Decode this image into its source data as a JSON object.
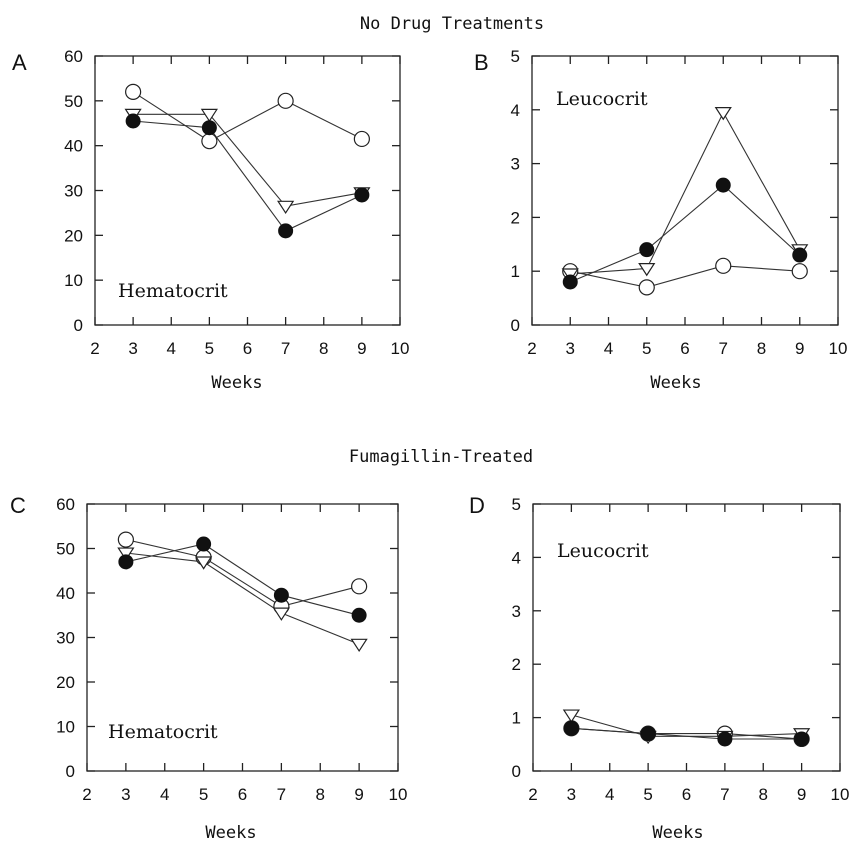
{
  "sections": [
    {
      "title": "No Drug Treatments"
    },
    {
      "title": "Fumagillin-Treated"
    }
  ],
  "chart_data": [
    {
      "panel": "A",
      "type": "line",
      "label": "Hematocrit",
      "xlabel": "Weeks",
      "ylabel": "",
      "xlim": [
        2,
        10
      ],
      "ylim": [
        0,
        60
      ],
      "xticks": [
        2,
        3,
        4,
        5,
        6,
        7,
        8,
        9,
        10
      ],
      "yticks": [
        0,
        10,
        20,
        30,
        40,
        50,
        60
      ],
      "x": [
        3,
        5,
        7,
        9
      ],
      "series": [
        {
          "marker": "open-circle",
          "values": [
            52,
            41,
            50,
            41.5
          ]
        },
        {
          "marker": "open-triangle-down",
          "values": [
            47,
            47,
            26.5,
            29.5
          ]
        },
        {
          "marker": "filled-circle",
          "values": [
            45.5,
            44,
            21,
            29
          ]
        }
      ],
      "grid": false,
      "legend": "none"
    },
    {
      "panel": "B",
      "type": "line",
      "label": "Leucocrit",
      "xlabel": "Weeks",
      "ylabel": "",
      "xlim": [
        2,
        10
      ],
      "ylim": [
        0,
        5
      ],
      "xticks": [
        2,
        3,
        4,
        5,
        6,
        7,
        8,
        9,
        10
      ],
      "yticks": [
        0,
        1,
        2,
        3,
        4,
        5
      ],
      "x": [
        3,
        5,
        7,
        9
      ],
      "series": [
        {
          "marker": "open-circle",
          "values": [
            1.0,
            0.7,
            1.1,
            1.0
          ]
        },
        {
          "marker": "open-triangle-down",
          "values": [
            0.95,
            1.05,
            3.95,
            1.4
          ]
        },
        {
          "marker": "filled-circle",
          "values": [
            0.8,
            1.4,
            2.6,
            1.3
          ]
        }
      ],
      "grid": false,
      "legend": "none"
    },
    {
      "panel": "C",
      "type": "line",
      "label": "Hematocrit",
      "xlabel": "Weeks",
      "ylabel": "",
      "xlim": [
        2,
        10
      ],
      "ylim": [
        0,
        60
      ],
      "xticks": [
        2,
        3,
        4,
        5,
        6,
        7,
        8,
        9,
        10
      ],
      "yticks": [
        0,
        10,
        20,
        30,
        40,
        50,
        60
      ],
      "x": [
        3,
        5,
        7,
        9
      ],
      "series": [
        {
          "marker": "open-circle",
          "values": [
            52,
            48,
            37,
            41.5
          ]
        },
        {
          "marker": "open-triangle-down",
          "values": [
            49,
            47,
            35.5,
            28.5
          ]
        },
        {
          "marker": "filled-circle",
          "values": [
            47,
            51,
            39.5,
            35
          ]
        }
      ],
      "grid": false,
      "legend": "none"
    },
    {
      "panel": "D",
      "type": "line",
      "label": "Leucocrit",
      "xlabel": "Weeks",
      "ylabel": "",
      "xlim": [
        2,
        10
      ],
      "ylim": [
        0,
        5
      ],
      "xticks": [
        2,
        3,
        4,
        5,
        6,
        7,
        8,
        9,
        10
      ],
      "yticks": [
        0,
        1,
        2,
        3,
        4,
        5
      ],
      "x": [
        3,
        5,
        7,
        9
      ],
      "series": [
        {
          "marker": "open-circle",
          "values": [
            0.8,
            0.7,
            0.7,
            0.6
          ]
        },
        {
          "marker": "open-triangle-down",
          "values": [
            1.05,
            0.65,
            0.65,
            0.7
          ]
        },
        {
          "marker": "filled-circle",
          "values": [
            0.8,
            0.7,
            0.6,
            0.6
          ]
        }
      ],
      "grid": false,
      "legend": "none"
    }
  ]
}
